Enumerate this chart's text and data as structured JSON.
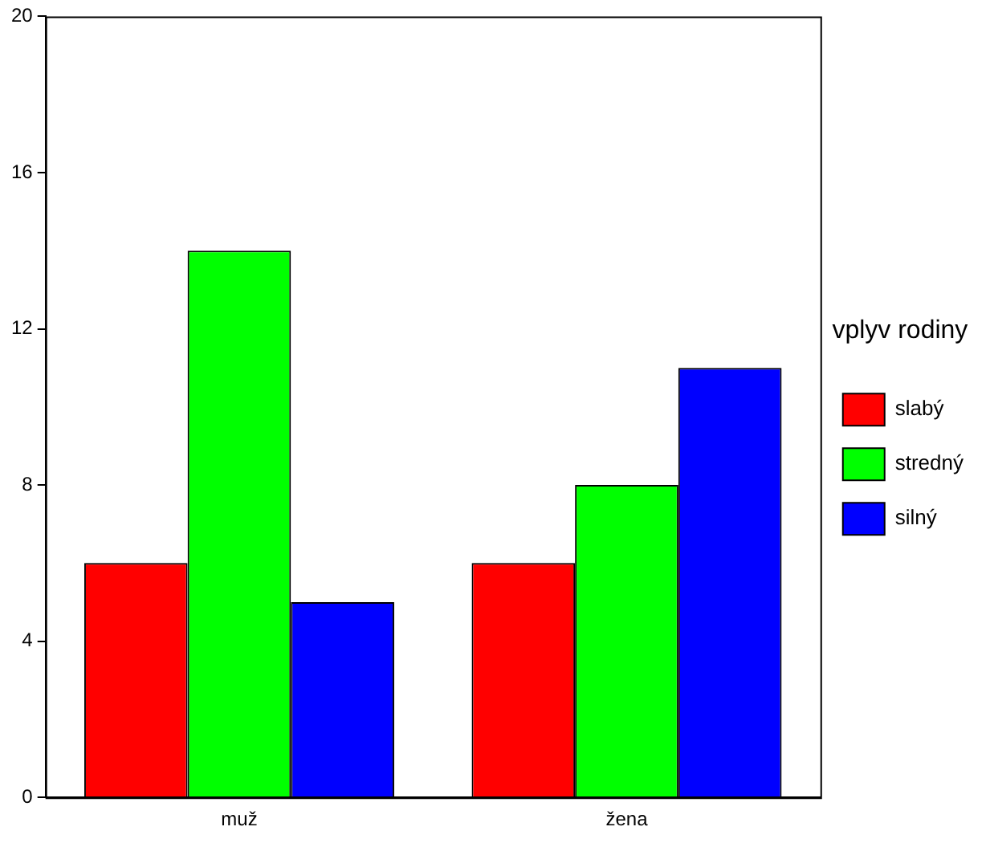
{
  "chart_data": {
    "type": "bar",
    "categories": [
      "muž",
      "žena"
    ],
    "series": [
      {
        "name": "slabý",
        "color": "#ff0000",
        "values": [
          6,
          6
        ]
      },
      {
        "name": "stredný",
        "color": "#00ff00",
        "values": [
          14,
          8
        ]
      },
      {
        "name": "silný",
        "color": "#0000ff",
        "values": [
          5,
          11
        ]
      }
    ],
    "ylim": [
      0,
      20
    ],
    "yticks": [
      0,
      4,
      8,
      12,
      16,
      20
    ],
    "grid": false,
    "legend": "right",
    "legend_title": "vplyv rodiny"
  }
}
